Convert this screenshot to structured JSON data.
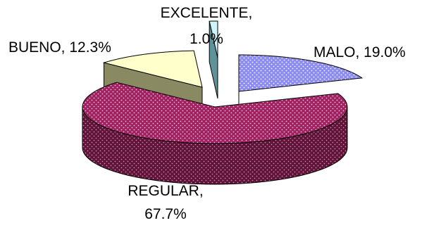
{
  "chart_data": {
    "type": "pie",
    "style": "3d-exploded",
    "title": "",
    "slices": [
      {
        "label": "MALO",
        "percent_text": "19.0%",
        "value": 19.0,
        "color": "#8c8cf0",
        "pattern": "dotted",
        "pattern_color": "#ffffff"
      },
      {
        "label": "REGULAR",
        "percent_text": "67.7%",
        "value": 67.7,
        "color": "#a02060",
        "pattern": "dotted",
        "pattern_color": "#f2c6dc"
      },
      {
        "label": "BUENO",
        "percent_text": "12.3%",
        "value": 12.3,
        "color": "#ffffcc",
        "pattern": "none",
        "pattern_color": ""
      },
      {
        "label": "EXCELENTE",
        "percent_text": "1.0%",
        "value": 1.0,
        "color": "#cdf5fa",
        "pattern": "none",
        "pattern_color": ""
      }
    ],
    "data_labels": {
      "malo": "MALO, 19.0%",
      "regular_name": "REGULAR,",
      "regular_pct": "67.7%",
      "bueno": "BUENO, 12.3%",
      "excelente_name": "EXCELENTE,",
      "excelente_pct": "1.0%"
    },
    "legend": "none"
  }
}
